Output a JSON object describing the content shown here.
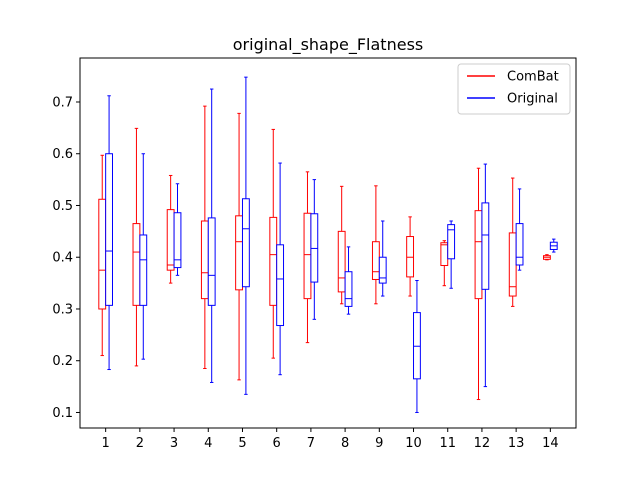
{
  "chart_data": {
    "type": "box",
    "title": "original_shape_Flatness",
    "xlabel": "",
    "ylabel": "",
    "categories": [
      "1",
      "2",
      "3",
      "4",
      "5",
      "6",
      "7",
      "8",
      "9",
      "10",
      "11",
      "12",
      "13",
      "14"
    ],
    "ylim": [
      0.07,
      0.785
    ],
    "yticks": [
      "0.1",
      "0.2",
      "0.3",
      "0.4",
      "0.5",
      "0.6",
      "0.7"
    ],
    "legend_position": "upper right",
    "series": [
      {
        "name": "ComBat",
        "color": "#ff0000",
        "boxes": [
          {
            "whislo": 0.21,
            "q1": 0.3,
            "med": 0.375,
            "q3": 0.512,
            "whishi": 0.597
          },
          {
            "whislo": 0.19,
            "q1": 0.307,
            "med": 0.41,
            "q3": 0.465,
            "whishi": 0.649
          },
          {
            "whislo": 0.35,
            "q1": 0.375,
            "med": 0.385,
            "q3": 0.492,
            "whishi": 0.558
          },
          {
            "whislo": 0.185,
            "q1": 0.32,
            "med": 0.37,
            "q3": 0.47,
            "whishi": 0.692
          },
          {
            "whislo": 0.163,
            "q1": 0.337,
            "med": 0.43,
            "q3": 0.48,
            "whishi": 0.678
          },
          {
            "whislo": 0.205,
            "q1": 0.307,
            "med": 0.405,
            "q3": 0.477,
            "whishi": 0.647
          },
          {
            "whislo": 0.235,
            "q1": 0.32,
            "med": 0.405,
            "q3": 0.485,
            "whishi": 0.565
          },
          {
            "whislo": 0.31,
            "q1": 0.333,
            "med": 0.36,
            "q3": 0.45,
            "whishi": 0.537
          },
          {
            "whislo": 0.31,
            "q1": 0.357,
            "med": 0.372,
            "q3": 0.43,
            "whishi": 0.538
          },
          {
            "whislo": 0.325,
            "q1": 0.362,
            "med": 0.4,
            "q3": 0.44,
            "whishi": 0.478
          },
          {
            "whislo": 0.345,
            "q1": 0.384,
            "med": 0.424,
            "q3": 0.428,
            "whishi": 0.432
          },
          {
            "whislo": 0.125,
            "q1": 0.32,
            "med": 0.43,
            "q3": 0.49,
            "whishi": 0.572
          },
          {
            "whislo": 0.305,
            "q1": 0.325,
            "med": 0.343,
            "q3": 0.447,
            "whishi": 0.553
          },
          {
            "whislo": 0.395,
            "q1": 0.396,
            "med": 0.4,
            "q3": 0.403,
            "whishi": 0.405
          }
        ]
      },
      {
        "name": "Original",
        "color": "#0000ff",
        "boxes": [
          {
            "whislo": 0.183,
            "q1": 0.307,
            "med": 0.412,
            "q3": 0.6,
            "whishi": 0.712
          },
          {
            "whislo": 0.203,
            "q1": 0.307,
            "med": 0.395,
            "q3": 0.443,
            "whishi": 0.6
          },
          {
            "whislo": 0.365,
            "q1": 0.38,
            "med": 0.395,
            "q3": 0.486,
            "whishi": 0.542
          },
          {
            "whislo": 0.158,
            "q1": 0.307,
            "med": 0.365,
            "q3": 0.476,
            "whishi": 0.725
          },
          {
            "whislo": 0.135,
            "q1": 0.343,
            "med": 0.455,
            "q3": 0.513,
            "whishi": 0.748
          },
          {
            "whislo": 0.173,
            "q1": 0.268,
            "med": 0.358,
            "q3": 0.424,
            "whishi": 0.582
          },
          {
            "whislo": 0.28,
            "q1": 0.352,
            "med": 0.417,
            "q3": 0.484,
            "whishi": 0.55
          },
          {
            "whislo": 0.29,
            "q1": 0.305,
            "med": 0.32,
            "q3": 0.372,
            "whishi": 0.42
          },
          {
            "whislo": 0.325,
            "q1": 0.35,
            "med": 0.36,
            "q3": 0.4,
            "whishi": 0.47
          },
          {
            "whislo": 0.1,
            "q1": 0.165,
            "med": 0.228,
            "q3": 0.293,
            "whishi": 0.355
          },
          {
            "whislo": 0.34,
            "q1": 0.397,
            "med": 0.453,
            "q3": 0.463,
            "whishi": 0.47
          },
          {
            "whislo": 0.15,
            "q1": 0.338,
            "med": 0.443,
            "q3": 0.505,
            "whishi": 0.58
          },
          {
            "whislo": 0.375,
            "q1": 0.385,
            "med": 0.4,
            "q3": 0.465,
            "whishi": 0.532
          },
          {
            "whislo": 0.41,
            "q1": 0.415,
            "med": 0.422,
            "q3": 0.429,
            "whishi": 0.435
          }
        ]
      }
    ]
  }
}
